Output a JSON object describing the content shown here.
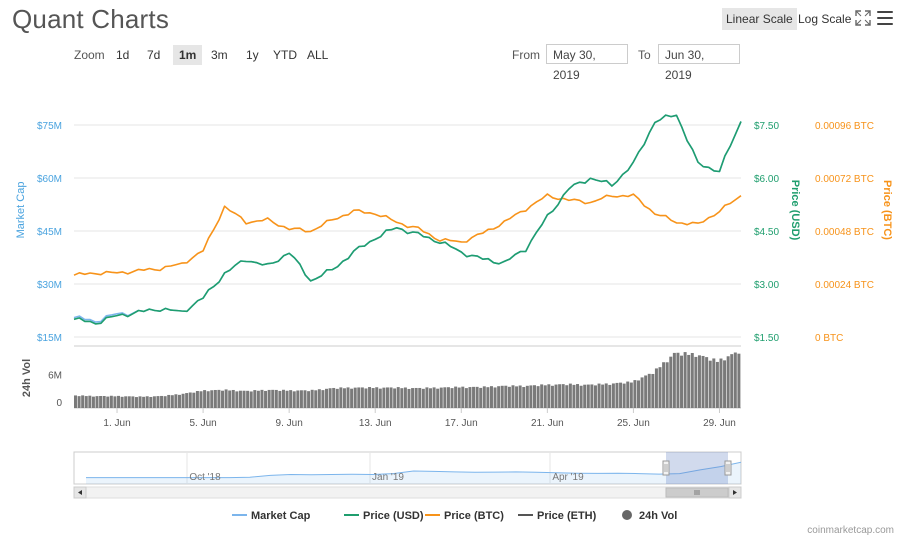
{
  "title": "Quant Charts",
  "toolbar": {
    "linear_scale": "Linear Scale",
    "log_scale": "Log Scale",
    "active_scale": "linear"
  },
  "zoom": {
    "label": "Zoom",
    "buttons": [
      "1d",
      "7d",
      "1m",
      "3m",
      "1y",
      "YTD",
      "ALL"
    ],
    "active": "1m"
  },
  "range": {
    "from_label": "From",
    "from_value": "May 30, 2019",
    "to_label": "To",
    "to_value": "Jun 30, 2019"
  },
  "colors": {
    "market_cap": "#7cb5ec",
    "price_usd": "#1f9e6e",
    "price_btc": "#f7931a",
    "price_eth": "#555555",
    "volume": "#8a8a8a"
  },
  "chart_data": {
    "type": "line",
    "x_axis": {
      "ticks": [
        "1. Jun",
        "5. Jun",
        "9. Jun",
        "13. Jun",
        "17. Jun",
        "21. Jun",
        "25. Jun",
        "29. Jun"
      ],
      "range": [
        "2019-05-30",
        "2019-06-30"
      ]
    },
    "axes": {
      "market_cap": {
        "label": "Market Cap",
        "ticks": [
          "$15M",
          "$30M",
          "$45M",
          "$60M",
          "$75M"
        ],
        "range": [
          15,
          75
        ]
      },
      "price_usd": {
        "label": "Price (USD)",
        "ticks": [
          "$1.50",
          "$3.00",
          "$4.50",
          "$6.00",
          "$7.50"
        ],
        "range": [
          1.5,
          7.5
        ]
      },
      "price_btc": {
        "label": "Price (BTC)",
        "ticks": [
          "0 BTC",
          "0.00024 BTC",
          "0.00048 BTC",
          "0.00072 BTC",
          "0.00096 BTC"
        ],
        "range": [
          0,
          0.00096
        ]
      },
      "volume": {
        "label": "24h Vol",
        "ticks": [
          "0",
          "6M"
        ],
        "range": [
          0,
          10
        ]
      }
    },
    "x_days": [
      0,
      1,
      2,
      3,
      4,
      5,
      6,
      7,
      8,
      9,
      10,
      11,
      12,
      13,
      14,
      15,
      16,
      17,
      18,
      19,
      20,
      21,
      22,
      23,
      24,
      25,
      26,
      27,
      28,
      29,
      30,
      31
    ],
    "series": [
      {
        "name": "Price (USD)",
        "axis": "price_usd",
        "values": [
          2.0,
          1.9,
          2.1,
          2.2,
          2.3,
          2.2,
          2.6,
          3.3,
          3.7,
          3.5,
          3.9,
          3.1,
          3.4,
          3.9,
          4.3,
          4.6,
          4.4,
          4.2,
          3.9,
          3.7,
          3.6,
          4.0,
          4.9,
          5.7,
          6.0,
          5.8,
          6.4,
          7.6,
          7.8,
          6.4,
          6.2,
          7.6
        ]
      },
      {
        "name": "Market Cap",
        "axis": "market_cap",
        "values": [
          20.5,
          19.5,
          21.5,
          22,
          23,
          22,
          26,
          33,
          37,
          35,
          39,
          31,
          34,
          39,
          43,
          46,
          44,
          42,
          39,
          37,
          36,
          40,
          49,
          57,
          60,
          58,
          64,
          76,
          78,
          64,
          62,
          76
        ]
      },
      {
        "name": "Price (BTC)",
        "axis": "price_btc",
        "values": [
          0.00028,
          0.00029,
          0.00029,
          0.0003,
          0.00031,
          0.00033,
          0.00039,
          0.00059,
          0.00052,
          0.00053,
          0.00049,
          0.00048,
          0.00053,
          0.00057,
          0.00056,
          0.00052,
          0.00049,
          0.00044,
          0.00043,
          0.00047,
          0.00052,
          0.00058,
          0.00064,
          0.00062,
          0.00061,
          0.00064,
          0.00064,
          0.00056,
          0.00052,
          0.00051,
          0.00057,
          0.00064
        ]
      },
      {
        "name": "24h Vol",
        "axis": "volume",
        "type": "bar",
        "values": [
          2.2,
          2.1,
          2.1,
          2.0,
          2.1,
          2.5,
          3.1,
          3.2,
          3.0,
          3.2,
          3.1,
          3.1,
          3.5,
          3.6,
          3.6,
          3.6,
          3.5,
          3.6,
          3.7,
          3.7,
          3.9,
          3.9,
          4.1,
          4.2,
          4.1,
          4.3,
          4.6,
          6.3,
          9.7,
          9.5,
          8.3,
          10.0
        ]
      }
    ],
    "navigator": {
      "labels": [
        "Oct '18",
        "Jan '19",
        "Apr '19"
      ]
    },
    "legend": {
      "position": "bottom",
      "items": [
        "Market Cap",
        "Price (USD)",
        "Price (BTC)",
        "Price (ETH)",
        "24h Vol"
      ]
    },
    "credit": "coinmarketcap.com"
  }
}
